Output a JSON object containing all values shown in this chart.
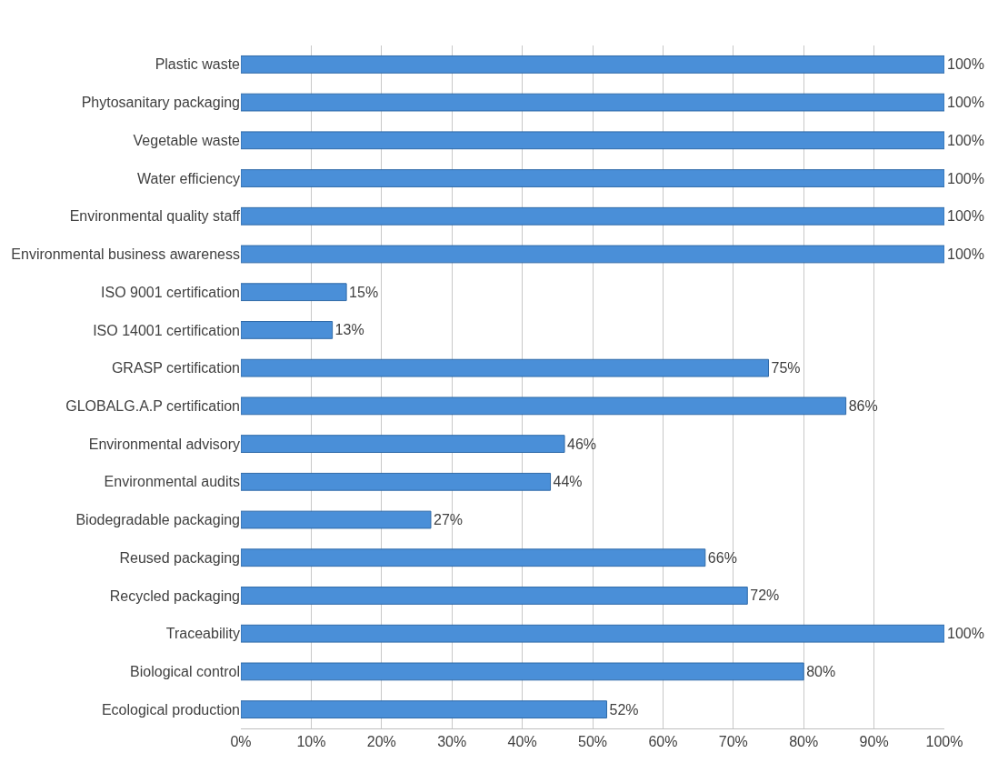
{
  "chart_data": {
    "type": "bar",
    "orientation": "horizontal",
    "categories": [
      "Plastic waste",
      "Phytosanitary packaging",
      "Vegetable waste",
      "Water efficiency",
      "Environmental quality staff",
      "Environmental business awareness",
      "ISO 9001 certification",
      "ISO 14001 certification",
      "GRASP certification",
      "GLOBALG.A.P certification",
      "Environmental advisory",
      "Environmental audits",
      "Biodegradable packaging",
      "Reused packaging",
      "Recycled packaging",
      "Traceability",
      "Biological control",
      "Ecological production"
    ],
    "values": [
      100,
      100,
      100,
      100,
      100,
      100,
      15,
      13,
      75,
      86,
      46,
      44,
      27,
      66,
      72,
      100,
      80,
      52
    ],
    "value_labels": [
      "100%",
      "100%",
      "100%",
      "100%",
      "100%",
      "100%",
      "15%",
      "13%",
      "75%",
      "86%",
      "46%",
      "44%",
      "27%",
      "66%",
      "72%",
      "100%",
      "80%",
      "52%"
    ],
    "color": "#4a8fd8",
    "xlim": [
      0,
      100
    ],
    "xticks": [
      {
        "value": 0,
        "label": "0%"
      },
      {
        "value": 10,
        "label": "10%"
      },
      {
        "value": 20,
        "label": "20%"
      },
      {
        "value": 30,
        "label": "30%"
      },
      {
        "value": 40,
        "label": "40%"
      },
      {
        "value": 50,
        "label": "50%"
      },
      {
        "value": 60,
        "label": "60%"
      },
      {
        "value": 70,
        "label": "70%"
      },
      {
        "value": 80,
        "label": "80%"
      },
      {
        "value": 90,
        "label": "90%"
      },
      {
        "value": 100,
        "label": "100%"
      }
    ],
    "grid": "x",
    "legend": false
  }
}
